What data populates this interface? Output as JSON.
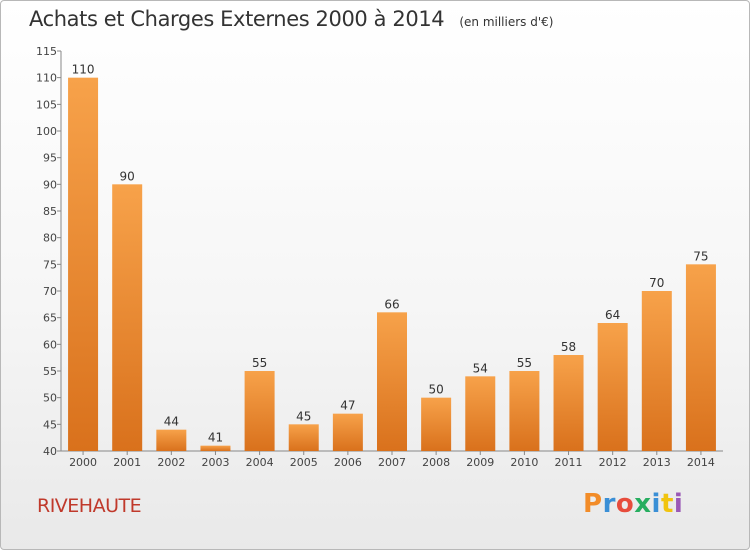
{
  "chart_data": {
    "type": "bar",
    "title": "Achats et Charges Externes 2000 à 2014",
    "subtitle": "(en milliers d'€)",
    "categories": [
      "2000",
      "2001",
      "2002",
      "2003",
      "2004",
      "2005",
      "2006",
      "2007",
      "2008",
      "2009",
      "2010",
      "2011",
      "2012",
      "2013",
      "2014"
    ],
    "values": [
      110,
      90,
      44,
      41,
      55,
      45,
      47,
      66,
      50,
      54,
      55,
      58,
      64,
      70,
      75
    ],
    "ylim": [
      40,
      115
    ],
    "yticks": [
      40,
      45,
      50,
      55,
      60,
      65,
      70,
      75,
      80,
      85,
      90,
      95,
      100,
      105,
      110,
      115
    ],
    "grid": false,
    "bar_color_top": "#f7a24a",
    "bar_color_bottom": "#d9711c"
  },
  "footer": {
    "location": "RIVEHAUTE",
    "logo_text": "Proxiti",
    "logo_colors": [
      "#f28c28",
      "#3a8fd6",
      "#e74c3c",
      "#27ae60",
      "#3a8fd6",
      "#f1c40f",
      "#9b59b6"
    ]
  }
}
